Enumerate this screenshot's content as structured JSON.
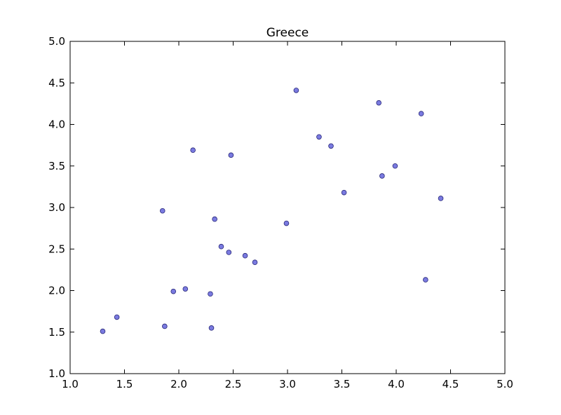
{
  "chart_data": {
    "type": "scatter",
    "title": "Greece",
    "xlabel": "",
    "ylabel": "",
    "xlim": [
      1.0,
      5.0
    ],
    "ylim": [
      1.0,
      5.0
    ],
    "xticks": [
      "1.0",
      "1.5",
      "2.0",
      "2.5",
      "3.0",
      "3.5",
      "4.0",
      "4.5",
      "5.0"
    ],
    "yticks": [
      "1.0",
      "1.5",
      "2.0",
      "2.5",
      "3.0",
      "3.5",
      "4.0",
      "4.5",
      "5.0"
    ],
    "grid": false,
    "marker_color": "#7a7ae0",
    "marker_edge_color": "#2a2a7a",
    "series": [
      {
        "points": [
          {
            "x": 1.3,
            "y": 1.51
          },
          {
            "x": 1.43,
            "y": 1.68
          },
          {
            "x": 1.87,
            "y": 1.57
          },
          {
            "x": 1.85,
            "y": 2.96
          },
          {
            "x": 1.95,
            "y": 1.99
          },
          {
            "x": 2.06,
            "y": 2.02
          },
          {
            "x": 2.13,
            "y": 3.69
          },
          {
            "x": 2.29,
            "y": 1.96
          },
          {
            "x": 2.3,
            "y": 1.55
          },
          {
            "x": 2.33,
            "y": 2.86
          },
          {
            "x": 2.39,
            "y": 2.53
          },
          {
            "x": 2.46,
            "y": 2.46
          },
          {
            "x": 2.48,
            "y": 3.63
          },
          {
            "x": 2.61,
            "y": 2.42
          },
          {
            "x": 2.7,
            "y": 2.34
          },
          {
            "x": 2.99,
            "y": 2.81
          },
          {
            "x": 3.08,
            "y": 4.41
          },
          {
            "x": 3.29,
            "y": 3.85
          },
          {
            "x": 3.4,
            "y": 3.74
          },
          {
            "x": 3.52,
            "y": 3.18
          },
          {
            "x": 3.84,
            "y": 4.26
          },
          {
            "x": 3.87,
            "y": 3.38
          },
          {
            "x": 3.99,
            "y": 3.5
          },
          {
            "x": 4.23,
            "y": 4.13
          },
          {
            "x": 4.27,
            "y": 2.13
          },
          {
            "x": 4.41,
            "y": 3.11
          }
        ]
      }
    ]
  }
}
